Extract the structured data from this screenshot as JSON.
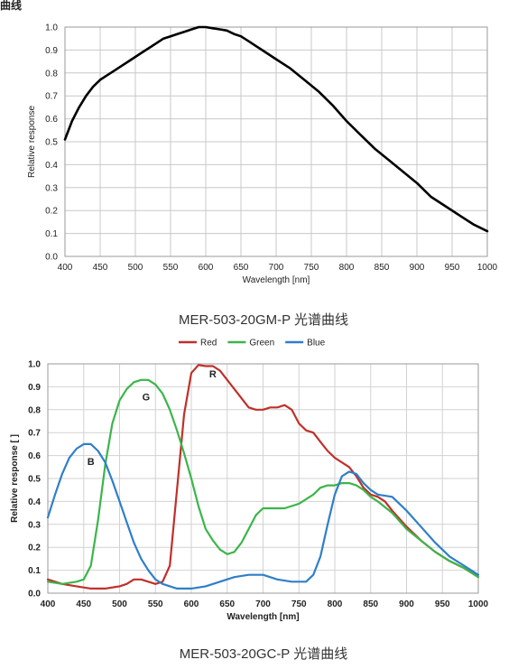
{
  "top_fragment": "曲线",
  "chart_data": [
    {
      "type": "line",
      "title": "",
      "caption": "MER-503-20GM-P 光谱曲线",
      "xlabel": "Wavelength  [nm]",
      "ylabel": "Relative  response",
      "xlim": [
        400,
        1000
      ],
      "ylim": [
        0,
        1.0
      ],
      "xticks": [
        "400",
        "450",
        "500",
        "550",
        "600",
        "650",
        "700",
        "750",
        "800",
        "850",
        "900",
        "950",
        "1000"
      ],
      "yticks": [
        "0.0",
        "0.1",
        "0.2",
        "0.3",
        "0.4",
        "0.5",
        "0.6",
        "0.7",
        "0.8",
        "0.9",
        "1.0"
      ],
      "grid": true,
      "series": [
        {
          "color": "#000000",
          "x": [
            400,
            410,
            420,
            430,
            440,
            450,
            460,
            470,
            480,
            490,
            500,
            510,
            520,
            530,
            540,
            550,
            560,
            570,
            580,
            590,
            600,
            610,
            620,
            630,
            640,
            650,
            660,
            670,
            680,
            690,
            700,
            720,
            740,
            760,
            780,
            800,
            820,
            840,
            860,
            880,
            900,
            920,
            940,
            960,
            980,
            1000
          ],
          "y": [
            0.51,
            0.59,
            0.65,
            0.7,
            0.74,
            0.77,
            0.79,
            0.81,
            0.83,
            0.85,
            0.87,
            0.89,
            0.91,
            0.93,
            0.95,
            0.96,
            0.97,
            0.98,
            0.99,
            1.0,
            1.0,
            0.995,
            0.99,
            0.985,
            0.97,
            0.96,
            0.94,
            0.92,
            0.9,
            0.88,
            0.86,
            0.82,
            0.77,
            0.72,
            0.66,
            0.59,
            0.53,
            0.47,
            0.42,
            0.37,
            0.32,
            0.26,
            0.22,
            0.18,
            0.14,
            0.11
          ]
        }
      ]
    },
    {
      "type": "line",
      "title": "",
      "caption": "MER-503-20GC-P 光谱曲线",
      "xlabel": "Wavelength [nm]",
      "ylabel": "Relative response [ ]",
      "xlim": [
        400,
        1000
      ],
      "ylim": [
        0,
        1.0
      ],
      "xticks": [
        "400",
        "450",
        "500",
        "550",
        "600",
        "650",
        "700",
        "750",
        "800",
        "850",
        "900",
        "950",
        "1000"
      ],
      "yticks": [
        "0.0",
        "0.1",
        "0.2",
        "0.3",
        "0.4",
        "0.5",
        "0.6",
        "0.7",
        "0.8",
        "0.9",
        "1.0"
      ],
      "grid": true,
      "legend_position": "top-center",
      "annotations": [
        {
          "text": "R",
          "x": 630,
          "y": 0.94
        },
        {
          "text": "G",
          "x": 537,
          "y": 0.84
        },
        {
          "text": "B",
          "x": 460,
          "y": 0.56
        }
      ],
      "series": [
        {
          "name": "Red",
          "color": "#c0302a",
          "x": [
            400,
            420,
            440,
            460,
            480,
            500,
            510,
            520,
            530,
            540,
            550,
            560,
            570,
            580,
            590,
            600,
            610,
            620,
            630,
            640,
            650,
            660,
            670,
            680,
            690,
            700,
            710,
            720,
            730,
            740,
            750,
            760,
            770,
            780,
            790,
            800,
            810,
            820,
            830,
            840,
            850,
            860,
            870,
            880,
            900,
            920,
            940,
            960,
            980,
            1000
          ],
          "y": [
            0.06,
            0.04,
            0.03,
            0.02,
            0.02,
            0.03,
            0.04,
            0.06,
            0.06,
            0.05,
            0.04,
            0.05,
            0.12,
            0.45,
            0.78,
            0.96,
            0.995,
            0.99,
            0.99,
            0.97,
            0.93,
            0.89,
            0.85,
            0.81,
            0.8,
            0.8,
            0.81,
            0.81,
            0.82,
            0.8,
            0.74,
            0.71,
            0.7,
            0.66,
            0.62,
            0.59,
            0.57,
            0.55,
            0.51,
            0.46,
            0.43,
            0.42,
            0.4,
            0.36,
            0.29,
            0.23,
            0.18,
            0.14,
            0.11,
            0.07
          ]
        },
        {
          "name": "Green",
          "color": "#3cb54a",
          "x": [
            400,
            420,
            440,
            450,
            460,
            470,
            480,
            490,
            500,
            510,
            520,
            530,
            540,
            550,
            560,
            570,
            580,
            590,
            600,
            610,
            620,
            630,
            640,
            650,
            660,
            670,
            680,
            690,
            700,
            710,
            720,
            730,
            740,
            750,
            760,
            770,
            780,
            790,
            800,
            810,
            820,
            830,
            840,
            850,
            860,
            880,
            900,
            920,
            940,
            960,
            980,
            1000
          ],
          "y": [
            0.05,
            0.04,
            0.05,
            0.06,
            0.12,
            0.32,
            0.56,
            0.74,
            0.84,
            0.89,
            0.92,
            0.93,
            0.93,
            0.91,
            0.87,
            0.8,
            0.71,
            0.61,
            0.5,
            0.38,
            0.28,
            0.23,
            0.19,
            0.17,
            0.18,
            0.22,
            0.28,
            0.34,
            0.37,
            0.37,
            0.37,
            0.37,
            0.38,
            0.39,
            0.41,
            0.43,
            0.46,
            0.47,
            0.47,
            0.48,
            0.48,
            0.47,
            0.45,
            0.42,
            0.4,
            0.35,
            0.28,
            0.23,
            0.18,
            0.14,
            0.11,
            0.07
          ]
        },
        {
          "name": "Blue",
          "color": "#2e7fc8",
          "x": [
            400,
            410,
            420,
            430,
            440,
            450,
            460,
            470,
            480,
            490,
            500,
            510,
            520,
            530,
            540,
            550,
            560,
            580,
            600,
            620,
            640,
            660,
            680,
            700,
            720,
            740,
            760,
            770,
            780,
            790,
            800,
            810,
            820,
            830,
            840,
            850,
            860,
            880,
            900,
            920,
            940,
            960,
            980,
            1000
          ],
          "y": [
            0.33,
            0.43,
            0.52,
            0.59,
            0.63,
            0.65,
            0.65,
            0.62,
            0.57,
            0.49,
            0.4,
            0.31,
            0.22,
            0.15,
            0.1,
            0.06,
            0.04,
            0.02,
            0.02,
            0.03,
            0.05,
            0.07,
            0.08,
            0.08,
            0.06,
            0.05,
            0.05,
            0.08,
            0.16,
            0.3,
            0.43,
            0.51,
            0.53,
            0.52,
            0.48,
            0.45,
            0.43,
            0.42,
            0.36,
            0.29,
            0.22,
            0.16,
            0.12,
            0.08
          ]
        }
      ]
    }
  ]
}
